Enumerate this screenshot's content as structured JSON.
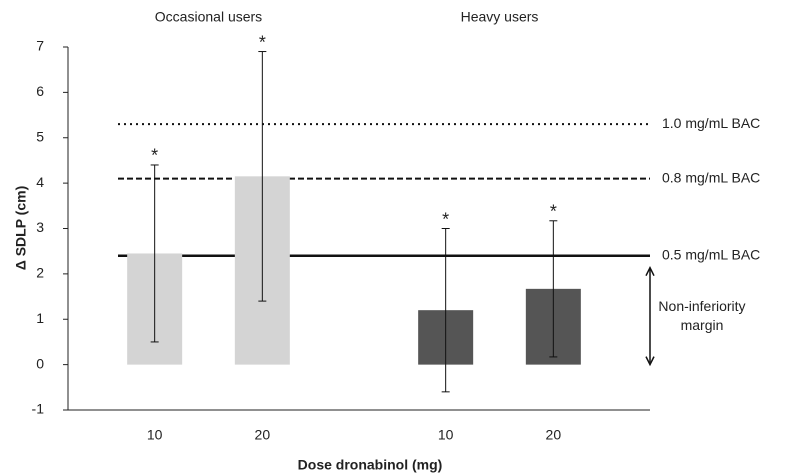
{
  "chart_data": {
    "type": "bar",
    "y_label": "Δ SDLP (cm)",
    "x_label": "Dose dronabinol (mg)",
    "categories": [
      "10",
      "20"
    ],
    "series": [
      {
        "name": "Occasional users",
        "color": "#d4d4d4",
        "values": [
          2.45,
          4.15
        ],
        "errors": [
          1.95,
          2.75
        ],
        "markers": [
          "*",
          "*"
        ]
      },
      {
        "name": "Heavy users",
        "color": "#555555",
        "values": [
          1.2,
          1.67
        ],
        "errors": [
          1.8,
          1.5
        ],
        "markers": [
          "*",
          "*"
        ]
      }
    ],
    "ylim": [
      -1,
      7
    ],
    "yticks": [
      -1,
      0,
      1,
      2,
      3,
      4,
      5,
      6,
      7
    ],
    "reference_lines": [
      {
        "value": 5.3,
        "label": "1.0 mg/mL BAC",
        "style": "dotted"
      },
      {
        "value": 4.1,
        "label": "0.8 mg/mL BAC",
        "style": "dashed"
      },
      {
        "value": 2.4,
        "label": "0.5 mg/mL BAC",
        "style": "solid"
      }
    ],
    "margin_label": [
      "Non-inferiority",
      "margin"
    ]
  }
}
